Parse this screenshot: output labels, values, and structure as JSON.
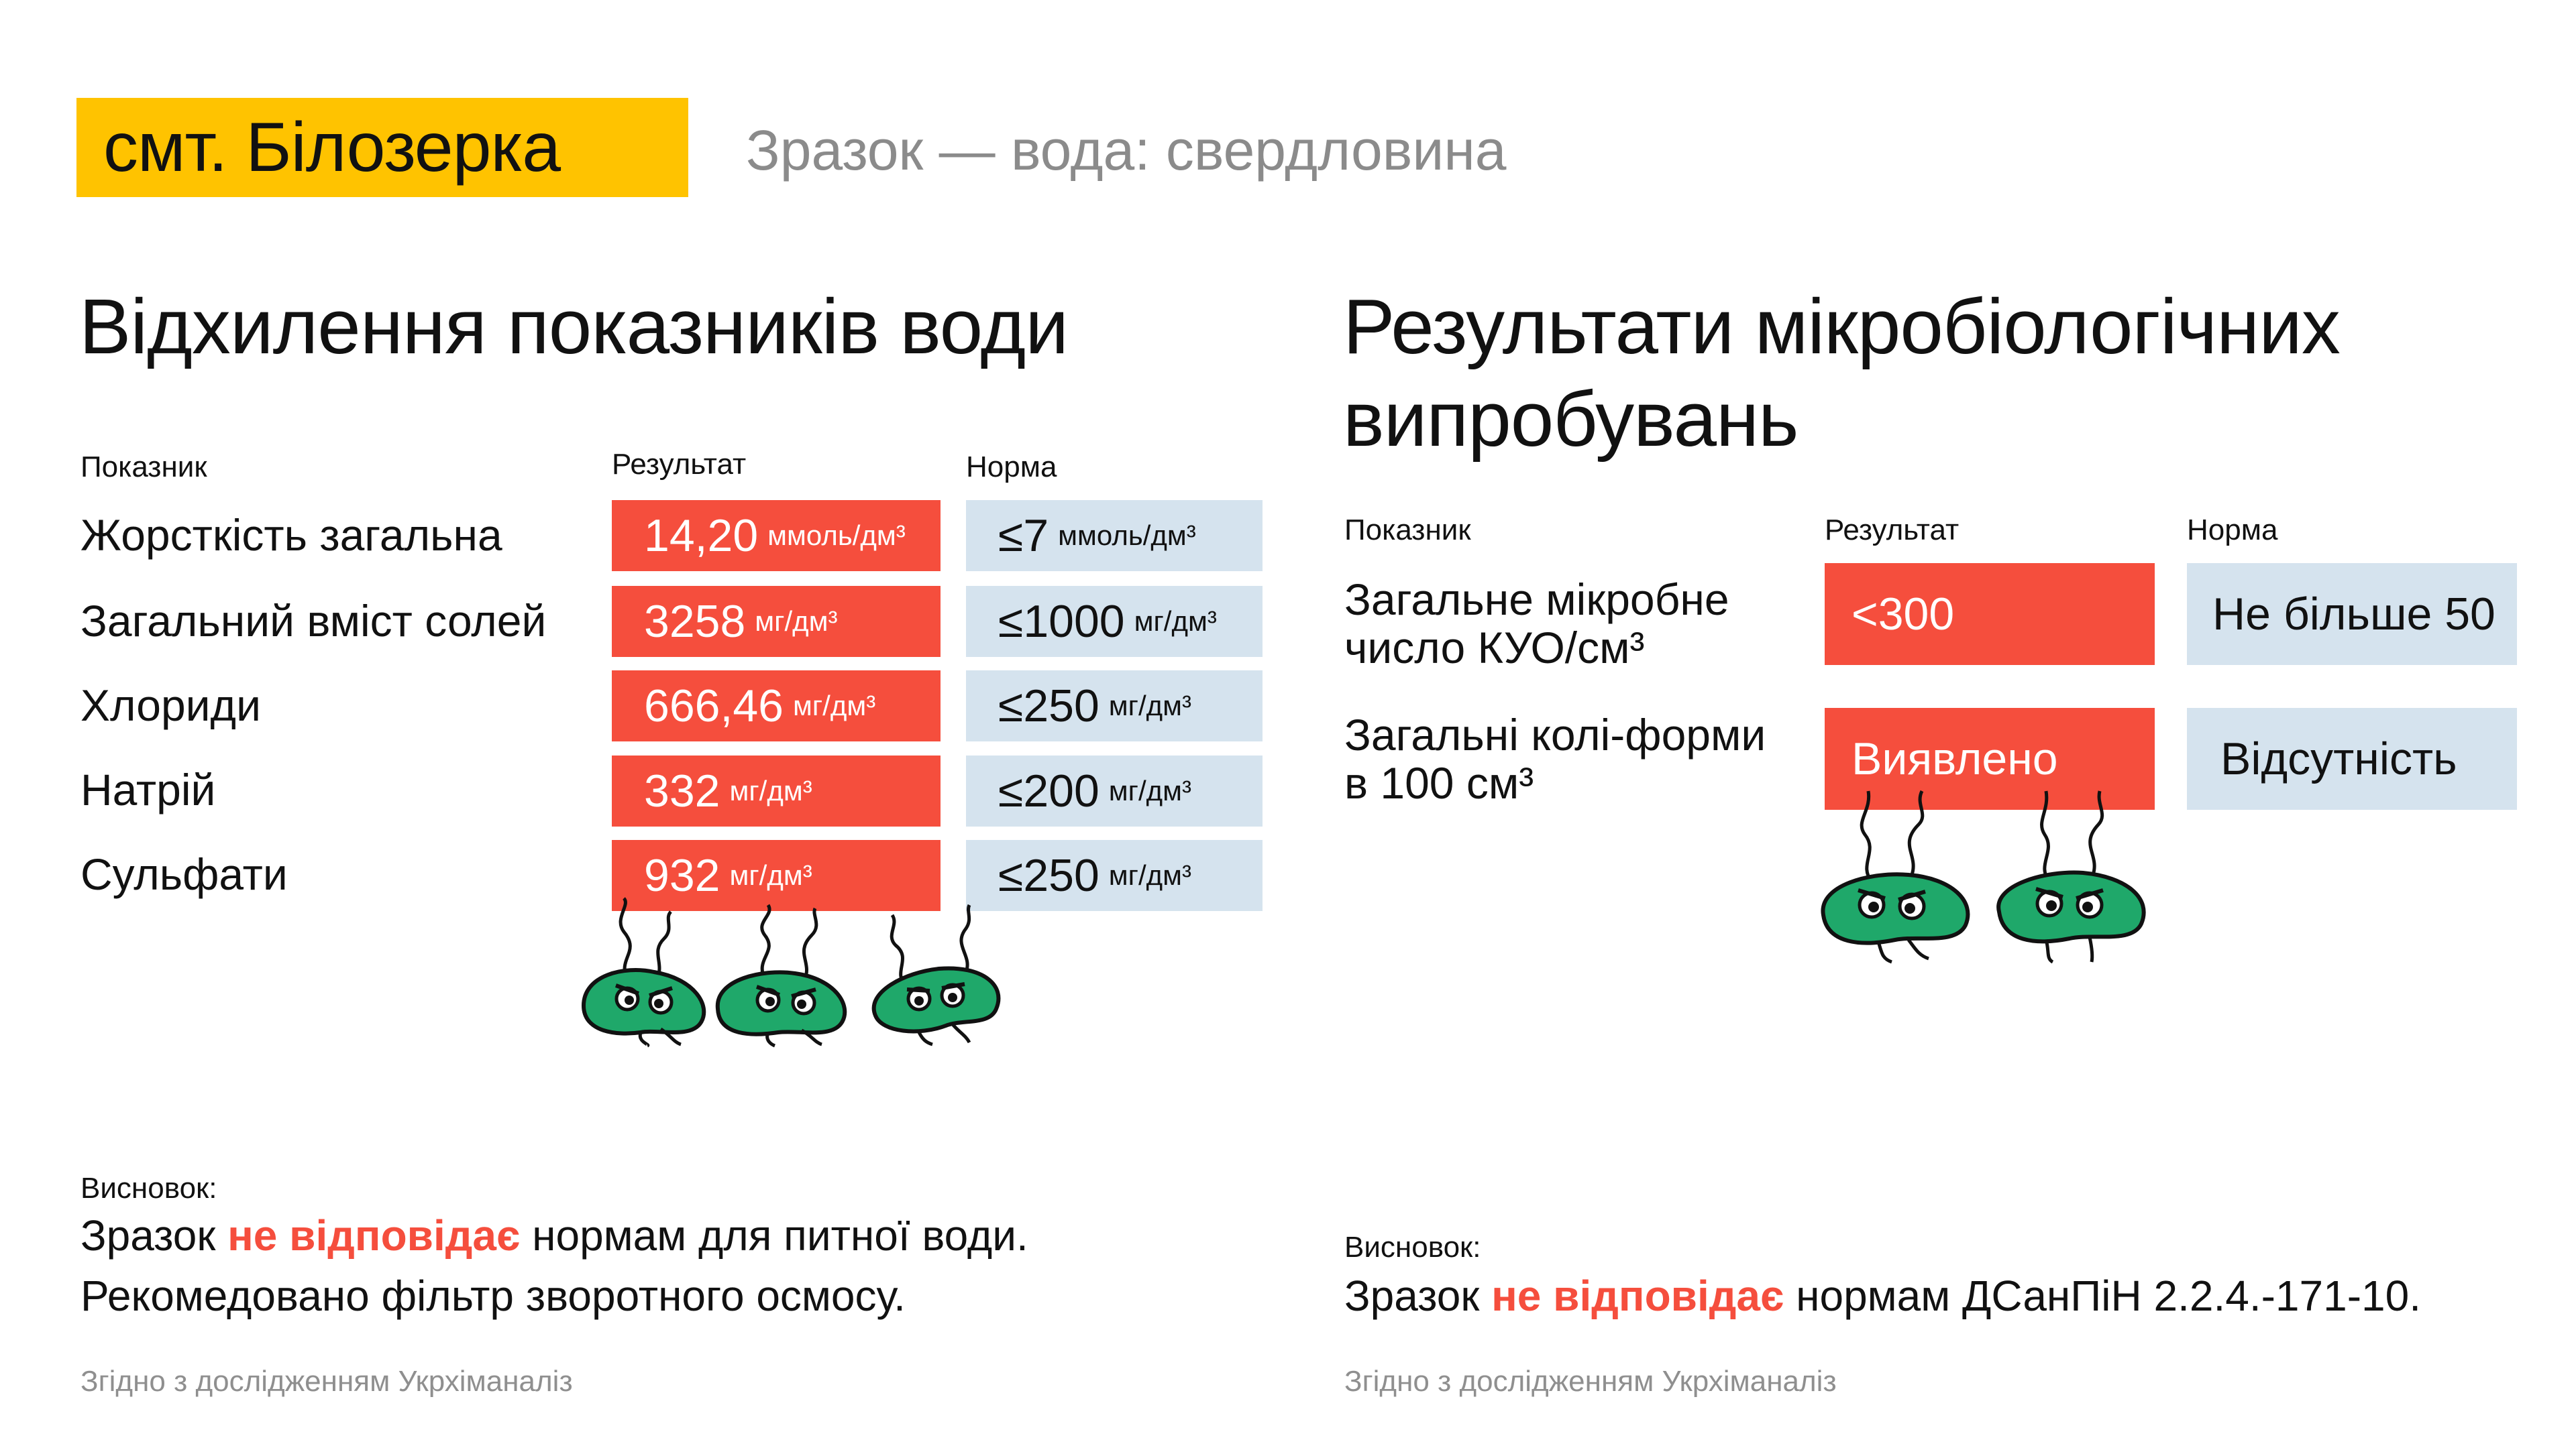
{
  "header": {
    "town": "смт. Білозерка",
    "sample": "Зразок — вода: свердловина"
  },
  "left": {
    "title": "Відхилення показників води",
    "columns": [
      "Показник",
      "Результат",
      "Норма"
    ],
    "rows": [
      {
        "name": "Жорсткість загальна",
        "result": "14,20",
        "result_unit": "ммоль/дм³",
        "norm": "≤7",
        "norm_unit": "ммоль/дм³"
      },
      {
        "name": "Загальний вміст солей",
        "result": "3258",
        "result_unit": "мг/дм³",
        "norm": "≤1000",
        "norm_unit": "мг/дм³"
      },
      {
        "name": "Хлориди",
        "result": "666,46",
        "result_unit": "мг/дм³",
        "norm": "≤250",
        "norm_unit": "мг/дм³"
      },
      {
        "name": "Натрій",
        "result": "332",
        "result_unit": "мг/дм³",
        "norm": "≤200",
        "norm_unit": "мг/дм³"
      },
      {
        "name": "Сульфати",
        "result": "932",
        "result_unit": "мг/дм³",
        "norm": "≤250",
        "norm_unit": "мг/дм³"
      }
    ],
    "conclusion_label": "Висновок:",
    "conclusion_pre": "Зразок",
    "conclusion_red": "не відповідає",
    "conclusion_post": "нормам для питної води.",
    "recommendation": "Рекомедовано фільтр зворотного осмосу.",
    "source": "Згідно з дослідженням Укрхіманаліз"
  },
  "right": {
    "title": "Результати мікробіологічних випробувань",
    "columns": [
      "Показник",
      "Результат",
      "Норма"
    ],
    "rows": [
      {
        "name_line1": "Загальне мікробне",
        "name_line2": "число КУО/см³",
        "result": "<300",
        "norm": "Не більше 50"
      },
      {
        "name_line1": "Загальні колі-форми",
        "name_line2": "в 100 см³",
        "result": "Виявлено",
        "norm": "Відсутність"
      }
    ],
    "conclusion_label": "Висновок:",
    "conclusion_pre": "Зразок",
    "conclusion_red": "не відповідає",
    "conclusion_post": "нормам ДСанПіН 2.2.4.-171-10.",
    "source": "Згідно з дослідженням Укрхіманаліз"
  },
  "colors": {
    "accent_yellow": "#FFC300",
    "result_red": "#F54E3D",
    "norm_blue": "#D5E3EE",
    "germ_green": "#1FA86A"
  },
  "icons": [
    "germ-icon"
  ]
}
